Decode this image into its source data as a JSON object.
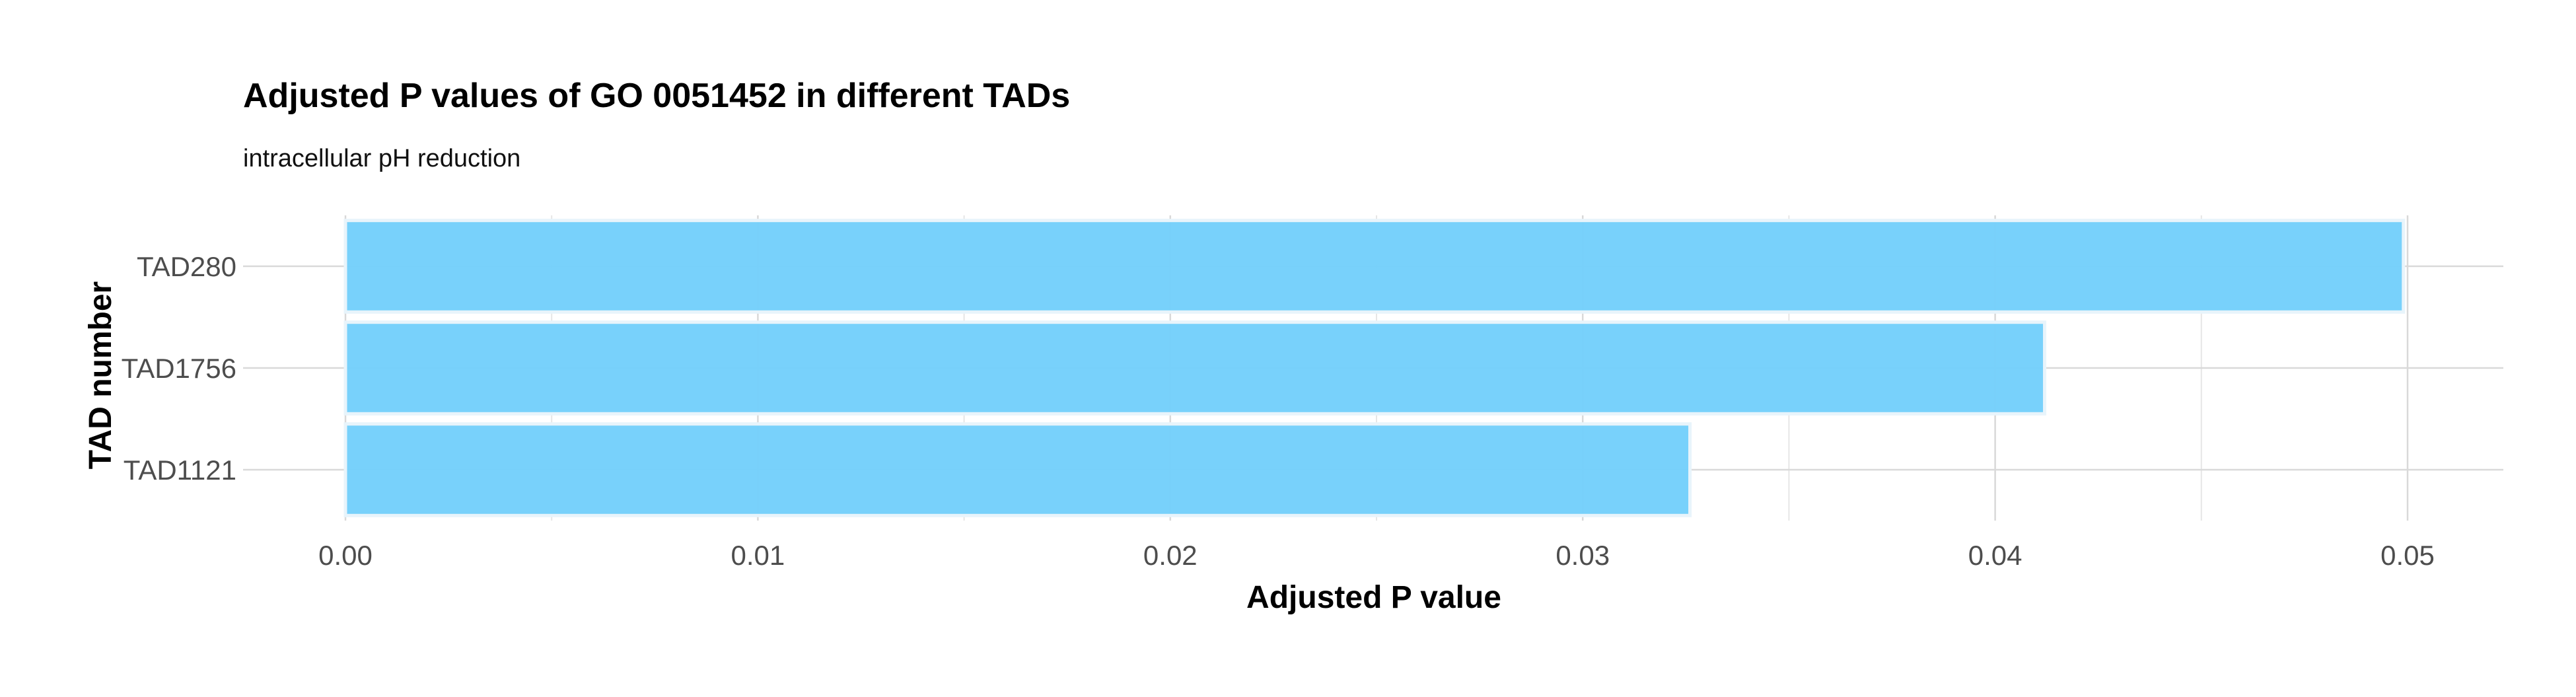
{
  "chart_data": {
    "type": "bar",
    "orientation": "horizontal",
    "title": "Adjusted P values of GO 0051452 in different TADs",
    "subtitle": "intracellular pH reduction",
    "xlabel": "Adjusted P value",
    "ylabel": "TAD number",
    "categories": [
      "TAD280",
      "TAD1756",
      "TAD1121"
    ],
    "values": [
      0.0499,
      0.0412,
      0.0326
    ],
    "xlim": [
      0,
      0.05
    ],
    "xticks": [
      "0.00",
      "0.01",
      "0.02",
      "0.03",
      "0.04",
      "0.05"
    ],
    "grid": true,
    "legend": "none",
    "bar_color": "#74CFFB"
  }
}
